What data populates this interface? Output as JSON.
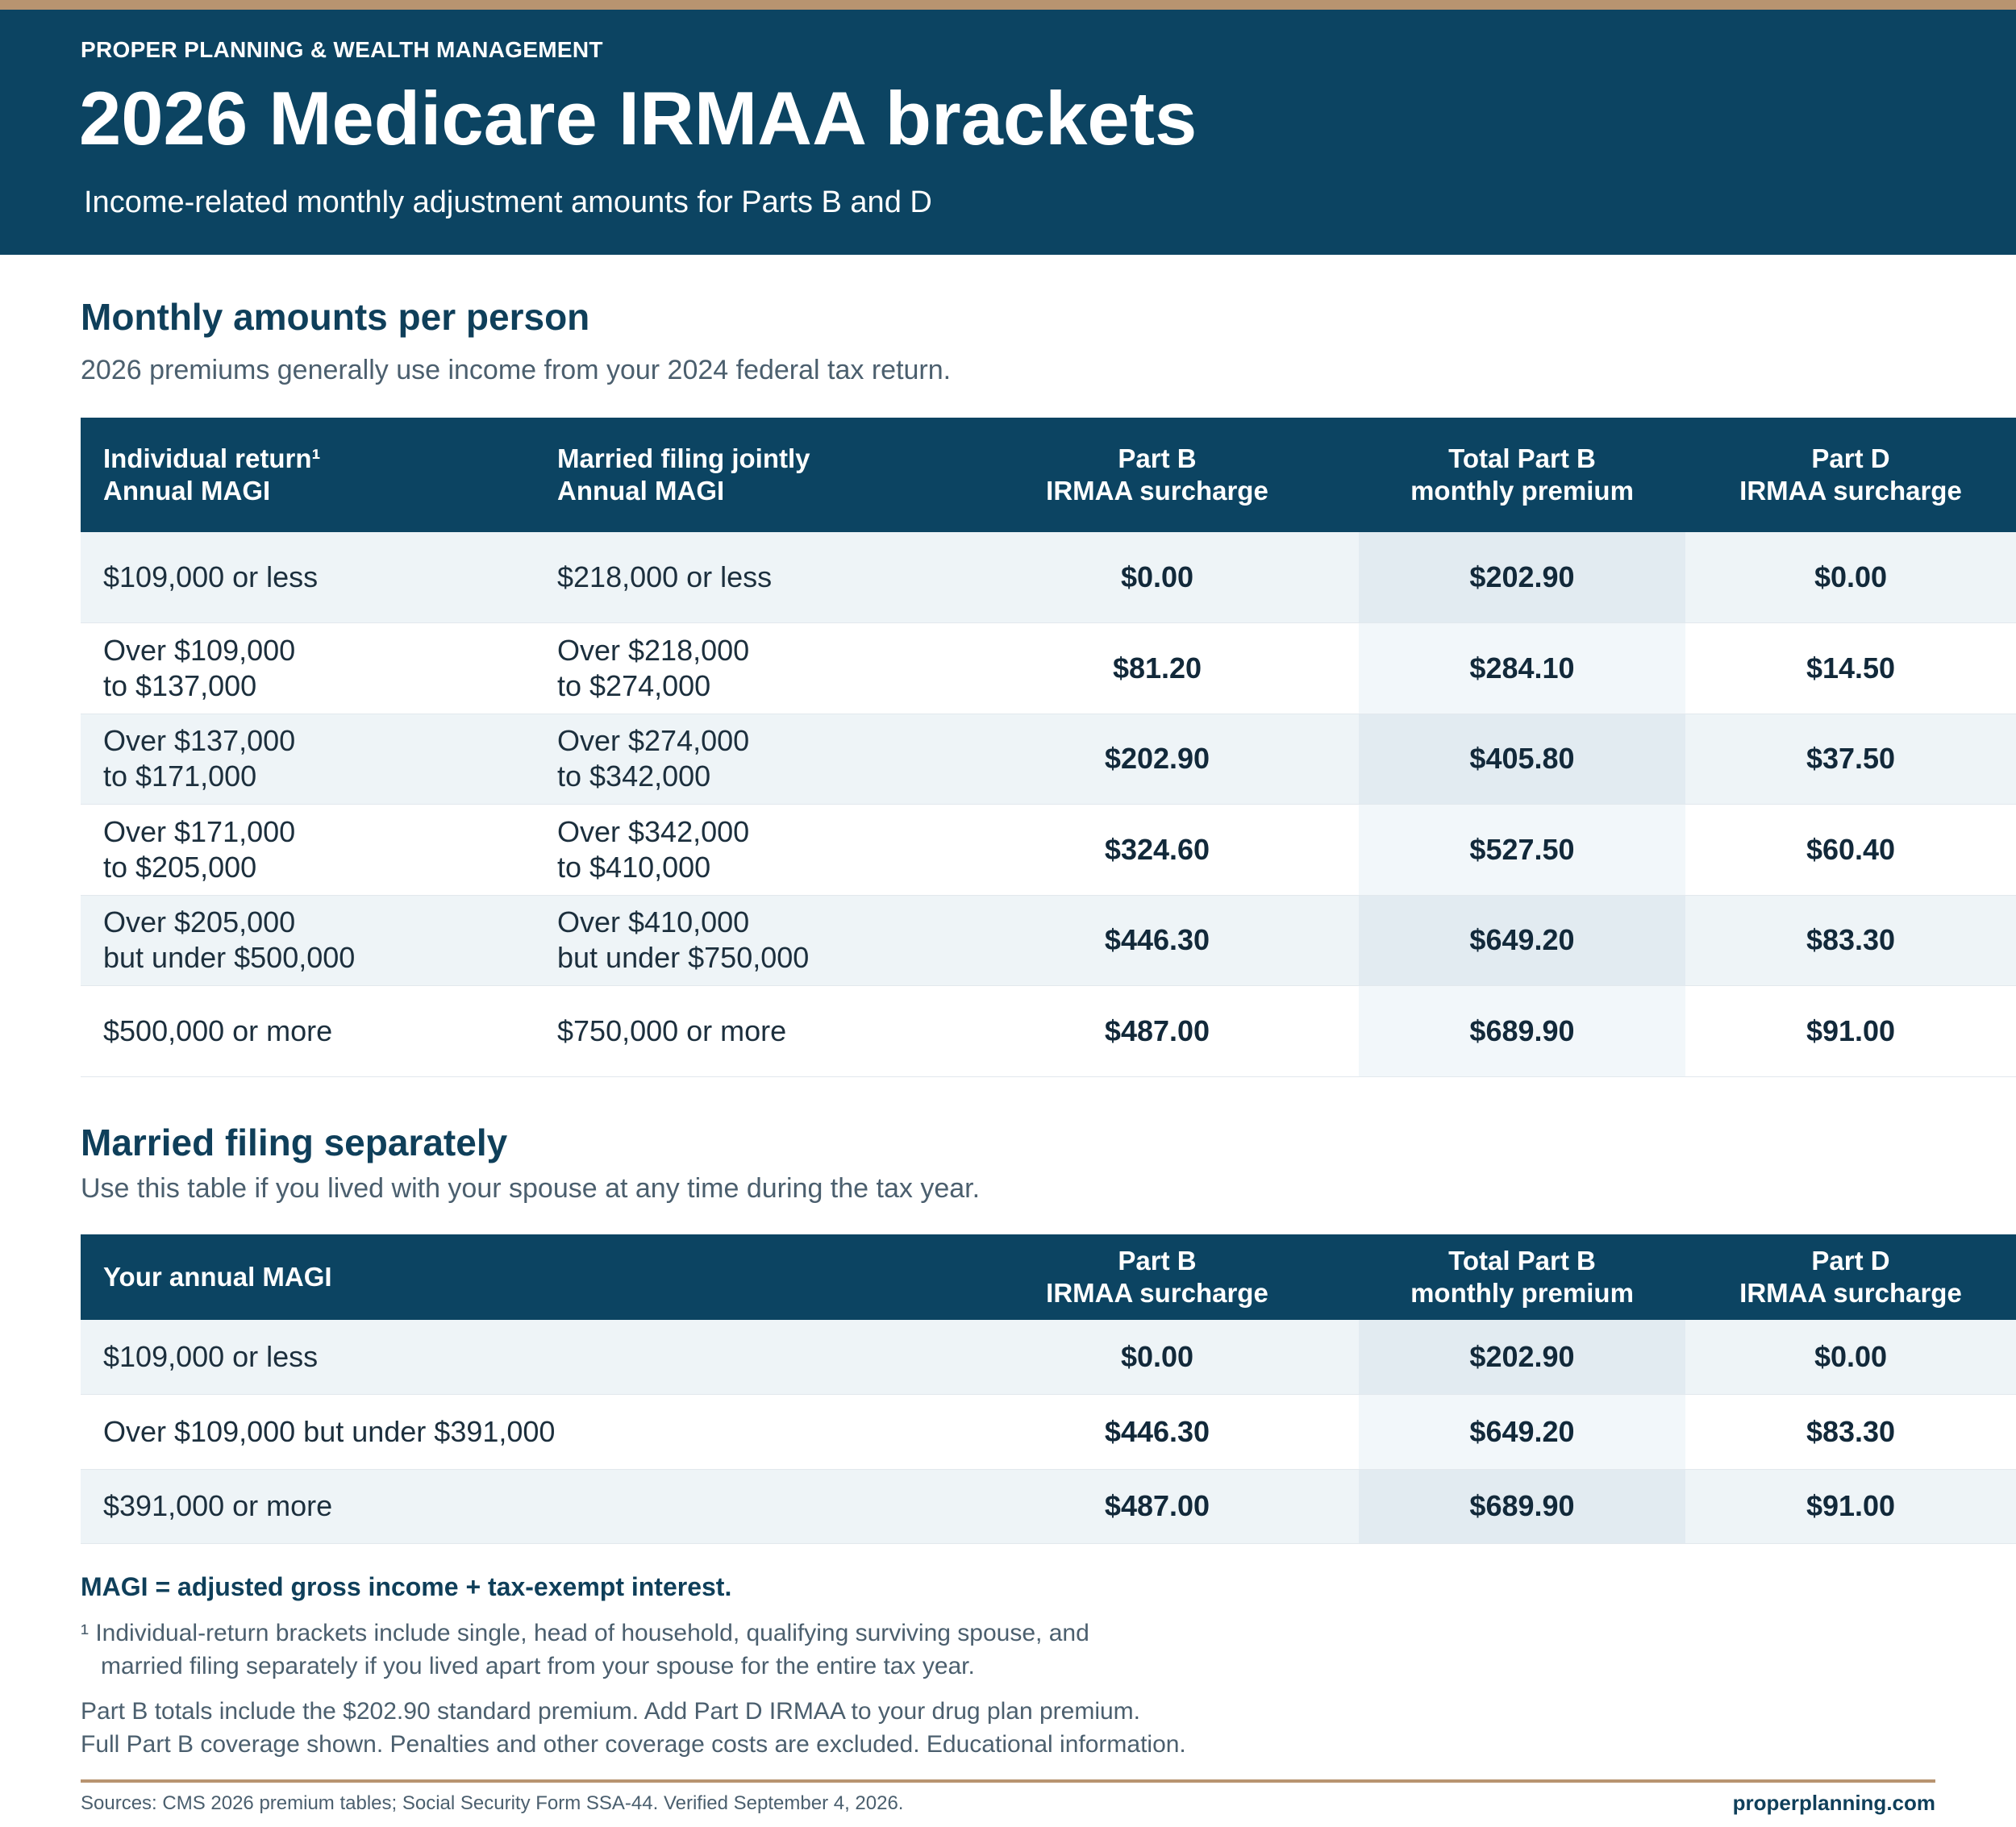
{
  "header": {
    "brand": "PROPER PLANNING & WEALTH MANAGEMENT",
    "title": "2026 Medicare IRMAA brackets",
    "subtitle": "Income-related monthly adjustment amounts for Parts B and D"
  },
  "section1": {
    "title": "Monthly amounts per person",
    "subtitle": "2026 premiums generally use income from your 2024 federal tax return.",
    "headers": {
      "individual": [
        "Individual return¹",
        "Annual MAGI"
      ],
      "joint": [
        "Married filing jointly",
        "Annual MAGI"
      ],
      "partb": [
        "Part B",
        "IRMAA surcharge"
      ],
      "total": [
        "Total Part B",
        "monthly premium"
      ],
      "partd": [
        "Part D",
        "IRMAA surcharge"
      ]
    },
    "rows": [
      {
        "individual": [
          "$109,000 or less"
        ],
        "joint": [
          "$218,000 or less"
        ],
        "partb": "$0.00",
        "total": "$202.90",
        "partd": "$0.00"
      },
      {
        "individual": [
          "Over $109,000",
          "to $137,000"
        ],
        "joint": [
          "Over $218,000",
          "to $274,000"
        ],
        "partb": "$81.20",
        "total": "$284.10",
        "partd": "$14.50"
      },
      {
        "individual": [
          "Over $137,000",
          "to $171,000"
        ],
        "joint": [
          "Over $274,000",
          "to $342,000"
        ],
        "partb": "$202.90",
        "total": "$405.80",
        "partd": "$37.50"
      },
      {
        "individual": [
          "Over $171,000",
          "to $205,000"
        ],
        "joint": [
          "Over $342,000",
          "to $410,000"
        ],
        "partb": "$324.60",
        "total": "$527.50",
        "partd": "$60.40"
      },
      {
        "individual": [
          "Over $205,000",
          "but under $500,000"
        ],
        "joint": [
          "Over $410,000",
          "but under $750,000"
        ],
        "partb": "$446.30",
        "total": "$649.20",
        "partd": "$83.30"
      },
      {
        "individual": [
          "$500,000 or more"
        ],
        "joint": [
          "$750,000 or more"
        ],
        "partb": "$487.00",
        "total": "$689.90",
        "partd": "$91.00"
      }
    ]
  },
  "section2": {
    "title": "Married filing separately",
    "subtitle": "Use this table if you lived with your spouse at any time during the tax year.",
    "headers": {
      "magi": "Your annual MAGI",
      "partb": [
        "Part B",
        "IRMAA surcharge"
      ],
      "total": [
        "Total Part B",
        "monthly premium"
      ],
      "partd": [
        "Part D",
        "IRMAA surcharge"
      ]
    },
    "rows": [
      {
        "magi": "$109,000 or less",
        "partb": "$0.00",
        "total": "$202.90",
        "partd": "$0.00"
      },
      {
        "magi": "Over $109,000 but under $391,000",
        "partb": "$446.30",
        "total": "$649.20",
        "partd": "$83.30"
      },
      {
        "magi": "$391,000 or more",
        "partb": "$487.00",
        "total": "$689.90",
        "partd": "$91.00"
      }
    ]
  },
  "notes": {
    "magi_definition": "MAGI = adjusted gross income + tax-exempt interest.",
    "footnote1": [
      "¹ Individual-return brackets include single, head of household, qualifying surviving spouse, and",
      "married filing separately if you lived apart from your spouse for the entire tax year."
    ],
    "footnote2": [
      "Part B totals include the $202.90 standard premium. Add Part D IRMAA to your drug plan premium.",
      "Full Part B coverage shown. Penalties and other coverage costs are excluded. Educational information."
    ]
  },
  "footer": {
    "sources": "Sources: CMS 2026 premium tables; Social Security Form SSA-44. Verified September 4, 2026.",
    "website": "properplanning.com"
  },
  "colors": {
    "navy": "#0c4462",
    "accent_tan": "#b89470",
    "row_alt": "#eef4f7",
    "highlight_column": "#e2ebf1"
  }
}
